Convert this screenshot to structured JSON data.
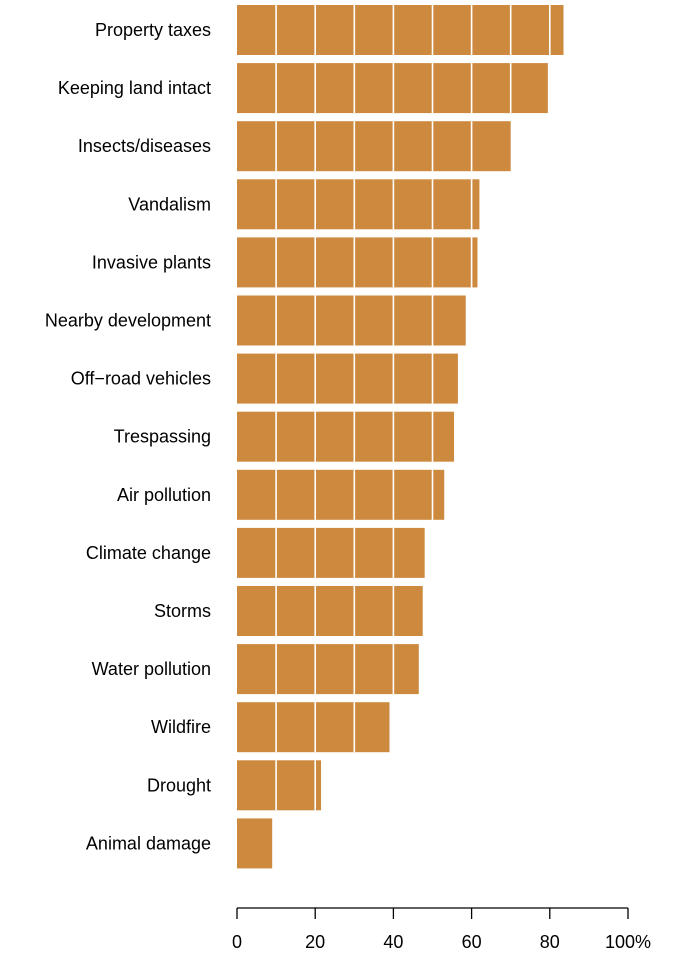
{
  "colors": {
    "bar": "#cd8a3f",
    "gridline": "#ffffff",
    "axis": "#000000"
  },
  "chart_data": {
    "type": "bar",
    "orientation": "horizontal",
    "categories": [
      "Property taxes",
      "Keeping land intact",
      "Insects/diseases",
      "Vandalism",
      "Invasive plants",
      "Nearby development",
      "Off−road vehicles",
      "Trespassing",
      "Air pollution",
      "Climate change",
      "Storms",
      "Water pollution",
      "Wildfire",
      "Drought",
      "Animal damage"
    ],
    "values": [
      83.5,
      79.5,
      70,
      62,
      61.5,
      58.5,
      56.5,
      55.5,
      53,
      48,
      47.5,
      46.5,
      39,
      21.5,
      9
    ],
    "xlim": [
      0,
      100
    ],
    "ticks": [
      0,
      20,
      40,
      60,
      80,
      100
    ],
    "tick_labels": [
      "0",
      "20",
      "40",
      "60",
      "80",
      "100%"
    ],
    "inner_gridlines_every": 10,
    "grid": false
  }
}
